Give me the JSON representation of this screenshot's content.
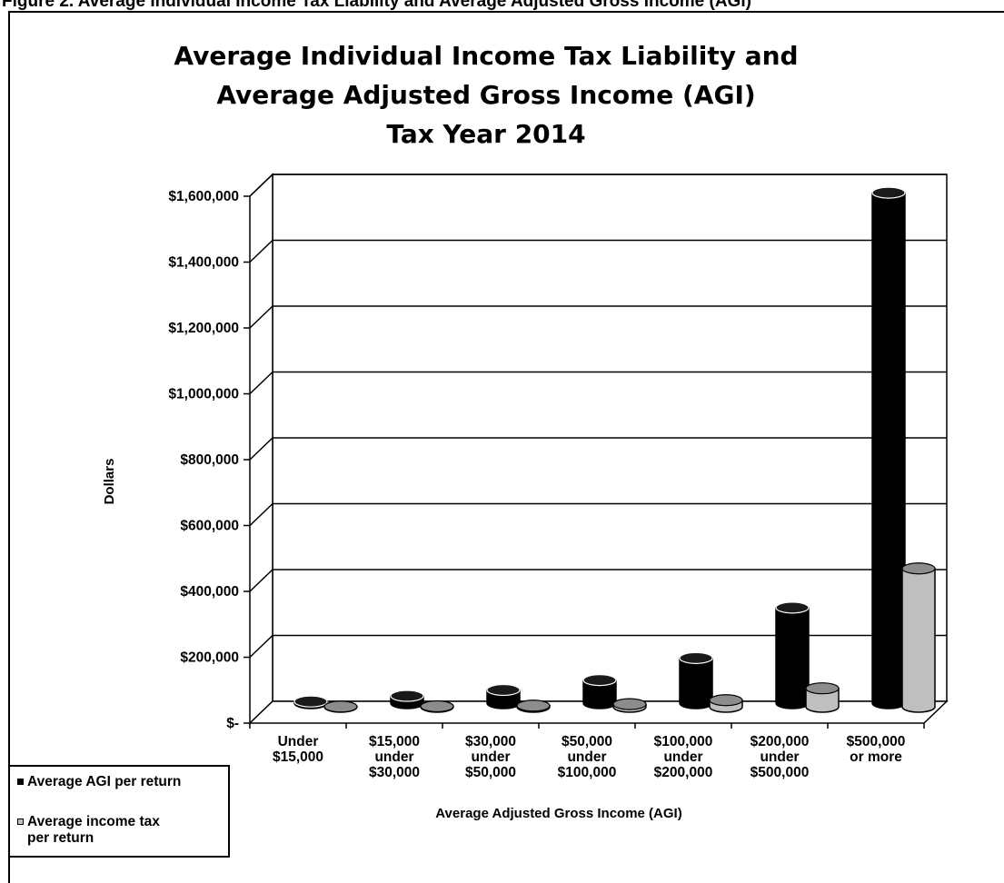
{
  "page": {
    "header": "Figure 2. Average Individual Income Tax Liability and Average Adjusted Gross Income (AGI)"
  },
  "chart_data": {
    "type": "bar",
    "title_lines": [
      "Average Individual Income Tax Liability and",
      "Average Adjusted Gross Income (AGI)",
      "Tax Year 2014"
    ],
    "xlabel": "Average Adjusted Gross Income (AGI)",
    "ylabel": "Dollars",
    "ylim": [
      0,
      1600000
    ],
    "yticks": [
      0,
      200000,
      400000,
      600000,
      800000,
      1000000,
      1200000,
      1400000,
      1600000
    ],
    "ytick_labels": [
      "$-",
      "$200,000",
      "$400,000",
      "$600,000",
      "$800,000",
      "$1,000,000",
      "$1,200,000",
      "$1,400,000",
      "$1,600,000"
    ],
    "grid": true,
    "style": "3d-cylinder",
    "legend_position": "bottom-left",
    "categories": [
      [
        "Under",
        "$15,000"
      ],
      [
        "$15,000",
        "under",
        "$30,000"
      ],
      [
        "$30,000",
        "under",
        "$50,000"
      ],
      [
        "$50,000",
        "under",
        "$100,000"
      ],
      [
        "$100,000",
        "under",
        "$200,000"
      ],
      [
        "$200,000",
        "under",
        "$500,000"
      ],
      [
        "$500,000",
        "or more"
      ]
    ],
    "series": [
      {
        "name": "Average AGI per return",
        "color": "#000000",
        "values": [
          5000,
          22000,
          40000,
          70000,
          137000,
          290000,
          1550000
        ]
      },
      {
        "name": "Average income tax per return",
        "color": "#bfbfbf",
        "values": [
          600,
          1400,
          3400,
          8000,
          20000,
          56000,
          420000
        ]
      }
    ]
  },
  "legend": {
    "items": [
      {
        "label_lines": [
          "Average AGI per return"
        ],
        "color": "#000000"
      },
      {
        "label_lines": [
          "Average income tax",
          "per return"
        ],
        "color": "#bfbfbf"
      }
    ]
  }
}
